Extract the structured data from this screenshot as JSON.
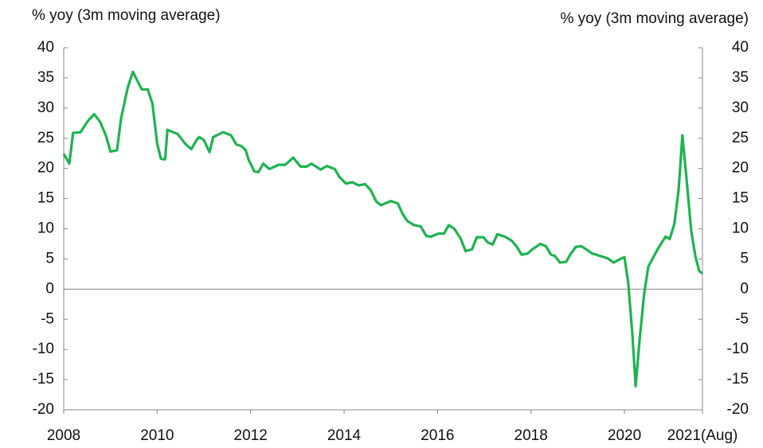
{
  "chart_data": {
    "type": "line",
    "ylabel": "% yoy (3m moving average)",
    "y2label": "% yoy (3m moving average)",
    "xlim": [
      2008,
      2021.67
    ],
    "xticks": [
      2008,
      2010,
      2012,
      2014,
      2016,
      2018,
      2020,
      {
        "value": 2021.67,
        "label": "2021(Aug)"
      }
    ],
    "ylim": [
      -20,
      40
    ],
    "yticks": [
      -20,
      -15,
      -10,
      -5,
      0,
      5,
      10,
      15,
      20,
      25,
      30,
      35,
      40
    ],
    "y2lim": [
      -20,
      40
    ],
    "y2ticks": [
      -20,
      -15,
      -10,
      -5,
      0,
      5,
      10,
      15,
      20,
      25,
      30,
      35,
      40
    ],
    "zero_line": true,
    "series": [
      {
        "color": "#1db34f",
        "x": [
          2008.0,
          2008.12,
          2008.2,
          2008.36,
          2008.51,
          2008.65,
          2008.78,
          2008.9,
          2009.0,
          2009.14,
          2009.23,
          2009.37,
          2009.48,
          2009.67,
          2009.8,
          2009.9,
          2010.0,
          2010.08,
          2010.17,
          2010.22,
          2010.44,
          2010.6,
          2010.73,
          2010.85,
          2010.9,
          2011.0,
          2011.12,
          2011.2,
          2011.41,
          2011.58,
          2011.69,
          2011.8,
          2011.89,
          2011.96,
          2012.08,
          2012.17,
          2012.27,
          2012.4,
          2012.6,
          2012.74,
          2012.91,
          2013.07,
          2013.2,
          2013.3,
          2013.5,
          2013.63,
          2013.8,
          2013.9,
          2014.04,
          2014.18,
          2014.31,
          2014.45,
          2014.57,
          2014.69,
          2014.79,
          2015.0,
          2015.15,
          2015.25,
          2015.35,
          2015.5,
          2015.64,
          2015.76,
          2015.86,
          2016.02,
          2016.14,
          2016.24,
          2016.36,
          2016.5,
          2016.6,
          2016.74,
          2016.84,
          2016.98,
          2017.08,
          2017.18,
          2017.28,
          2017.44,
          2017.59,
          2017.69,
          2017.8,
          2017.93,
          2018.03,
          2018.2,
          2018.32,
          2018.43,
          2018.51,
          2018.62,
          2018.75,
          2018.84,
          2018.96,
          2019.08,
          2019.2,
          2019.31,
          2019.4,
          2019.52,
          2019.64,
          2019.77,
          2019.91,
          2020.0,
          2020.08,
          2020.17,
          2020.24,
          2020.32,
          2020.42,
          2020.51,
          2020.6,
          2020.71,
          2020.88,
          2020.97,
          2021.07,
          2021.16,
          2021.24,
          2021.33,
          2021.43,
          2021.52,
          2021.6,
          2021.67
        ],
        "values": [
          22.4,
          20.8,
          25.9,
          26.0,
          27.8,
          29.0,
          27.7,
          25.5,
          22.8,
          23.0,
          28.4,
          33.4,
          36.0,
          33.1,
          33.1,
          30.7,
          24.1,
          21.6,
          21.5,
          26.4,
          25.7,
          24.1,
          23.2,
          24.8,
          25.2,
          24.7,
          22.7,
          25.2,
          26.0,
          25.5,
          24.0,
          23.7,
          23.1,
          21.4,
          19.5,
          19.4,
          20.8,
          19.9,
          20.6,
          20.6,
          21.8,
          20.3,
          20.3,
          20.8,
          19.8,
          20.4,
          19.9,
          18.6,
          17.5,
          17.7,
          17.2,
          17.4,
          16.4,
          14.5,
          13.9,
          14.6,
          14.2,
          12.5,
          11.3,
          10.6,
          10.4,
          8.8,
          8.7,
          9.2,
          9.2,
          10.6,
          10.0,
          8.3,
          6.3,
          6.6,
          8.6,
          8.6,
          7.7,
          7.4,
          9.1,
          8.7,
          8.0,
          7.1,
          5.7,
          5.9,
          6.6,
          7.5,
          7.1,
          5.7,
          5.5,
          4.4,
          4.5,
          5.7,
          7.0,
          7.1,
          6.5,
          5.9,
          5.7,
          5.4,
          5.1,
          4.4,
          5.0,
          5.3,
          1.1,
          -7.5,
          -16.1,
          -8.8,
          -0.9,
          3.7,
          5.0,
          6.6,
          8.7,
          8.3,
          10.9,
          16.5,
          25.5,
          18.2,
          9.6,
          5.4,
          3.0,
          2.6
        ]
      }
    ]
  }
}
